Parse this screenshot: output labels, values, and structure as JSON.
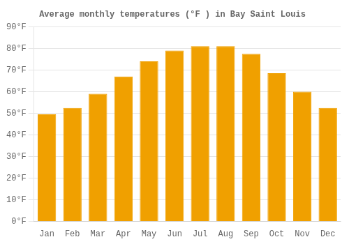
{
  "chart_data": {
    "type": "bar",
    "title": "Average monthly temperatures (°F ) in Bay Saint Louis",
    "categories": [
      "Jan",
      "Feb",
      "Mar",
      "Apr",
      "May",
      "Jun",
      "Jul",
      "Aug",
      "Sep",
      "Oct",
      "Nov",
      "Dec"
    ],
    "values": [
      49.5,
      52.5,
      59,
      67,
      74,
      79,
      81,
      81,
      77.5,
      68.5,
      60,
      52.5
    ],
    "color": "#F0A000",
    "ylim": [
      0,
      90
    ],
    "yticks": [
      {
        "value": 0,
        "label": "0°F"
      },
      {
        "value": 10,
        "label": "10°F"
      },
      {
        "value": 20,
        "label": "20°F"
      },
      {
        "value": 30,
        "label": "30°F"
      },
      {
        "value": 40,
        "label": "40°F"
      },
      {
        "value": 50,
        "label": "50°F"
      },
      {
        "value": 60,
        "label": "60°F"
      },
      {
        "value": 70,
        "label": "70°F"
      },
      {
        "value": 80,
        "label": "80°F"
      },
      {
        "value": 90,
        "label": "90°F"
      }
    ],
    "grid": true
  }
}
